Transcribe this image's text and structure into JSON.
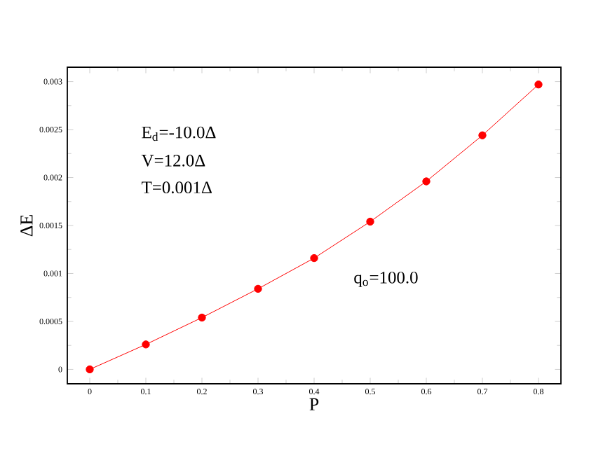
{
  "chart_data": {
    "type": "line",
    "xlabel": "P",
    "ylabel": "ΔE",
    "x": [
      0,
      0.1,
      0.2,
      0.3,
      0.4,
      0.5,
      0.6,
      0.7,
      0.8
    ],
    "series": [
      {
        "color": "#ff0000",
        "values": [
          0,
          0.00026,
          0.00054,
          0.00084,
          0.00116,
          0.00154,
          0.00196,
          0.00244,
          0.00297
        ]
      }
    ],
    "xlim": [
      -0.04,
      0.84
    ],
    "ylim": [
      -0.00015,
      0.00315
    ],
    "xticks": [
      0,
      0.1,
      0.2,
      0.3,
      0.4,
      0.5,
      0.6,
      0.7,
      0.8
    ],
    "yticks": [
      0,
      0.0005,
      0.001,
      0.0015,
      0.002,
      0.0025,
      0.003
    ],
    "annotations": [
      "E$_{d}$=-10.0Δ",
      "V=12.0Δ",
      "T=0.001Δ",
      "q$_{o}$=100.0"
    ],
    "marker": "circle",
    "line_style": "solid",
    "grid": false
  }
}
